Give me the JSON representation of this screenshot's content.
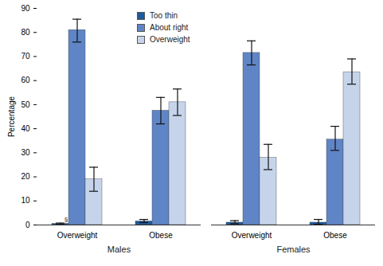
{
  "chart_data": {
    "type": "bar",
    "y_label": "Percentage",
    "facets": [
      "Males",
      "Females"
    ],
    "categories": [
      "Overweight",
      "Obese"
    ],
    "series": [
      {
        "name": "Too thin",
        "color": "#1f5a9e",
        "values": [
          [
            0.5,
            1.5
          ],
          [
            1.0,
            1.0
          ]
        ],
        "error_low": [
          [
            0.2,
            1.0
          ],
          [
            0.5,
            0.3
          ]
        ],
        "error_high": [
          [
            0.8,
            2.3
          ],
          [
            1.8,
            2.3
          ]
        ]
      },
      {
        "name": "About right",
        "color": "#5f85c6",
        "values": [
          [
            81,
            47.5
          ],
          [
            71.5,
            35.5
          ]
        ],
        "error_low": [
          [
            76,
            42
          ],
          [
            66.5,
            31
          ]
        ],
        "error_high": [
          [
            85.5,
            53
          ],
          [
            76.5,
            41
          ]
        ]
      },
      {
        "name": "Overweight",
        "color": "#c6d4eb",
        "values": [
          [
            19,
            51
          ],
          [
            28,
            63.5
          ]
        ],
        "error_low": [
          [
            14,
            45.5
          ],
          [
            23,
            58.5
          ]
        ],
        "error_high": [
          [
            24,
            56.5
          ],
          [
            33.5,
            69
          ]
        ]
      }
    ],
    "annotations": [
      {
        "text": "§",
        "series": "Too thin",
        "facet": "Males",
        "category": "Overweight"
      }
    ],
    "ylim": [
      0,
      90
    ],
    "yticks": [
      0,
      10,
      20,
      30,
      40,
      50,
      60,
      70,
      80,
      90
    ],
    "legend": "top",
    "grid": false
  }
}
